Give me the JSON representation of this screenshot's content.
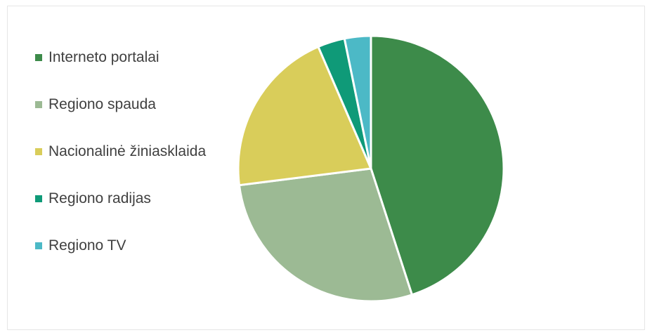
{
  "chart_data": {
    "type": "pie",
    "title": "",
    "legend_position": "left",
    "series": [
      {
        "categories": [
          "Interneto portalai",
          "Regiono spauda",
          "Nacionalinė žiniasklaida",
          "Regiono radijas",
          "Regiono TV"
        ],
        "values": [
          45,
          28,
          20.5,
          3.3,
          3.2
        ],
        "colors": [
          "#3d8b4a",
          "#9cba94",
          "#d9cd5a",
          "#0f9a78",
          "#4cb9c6"
        ]
      }
    ]
  }
}
